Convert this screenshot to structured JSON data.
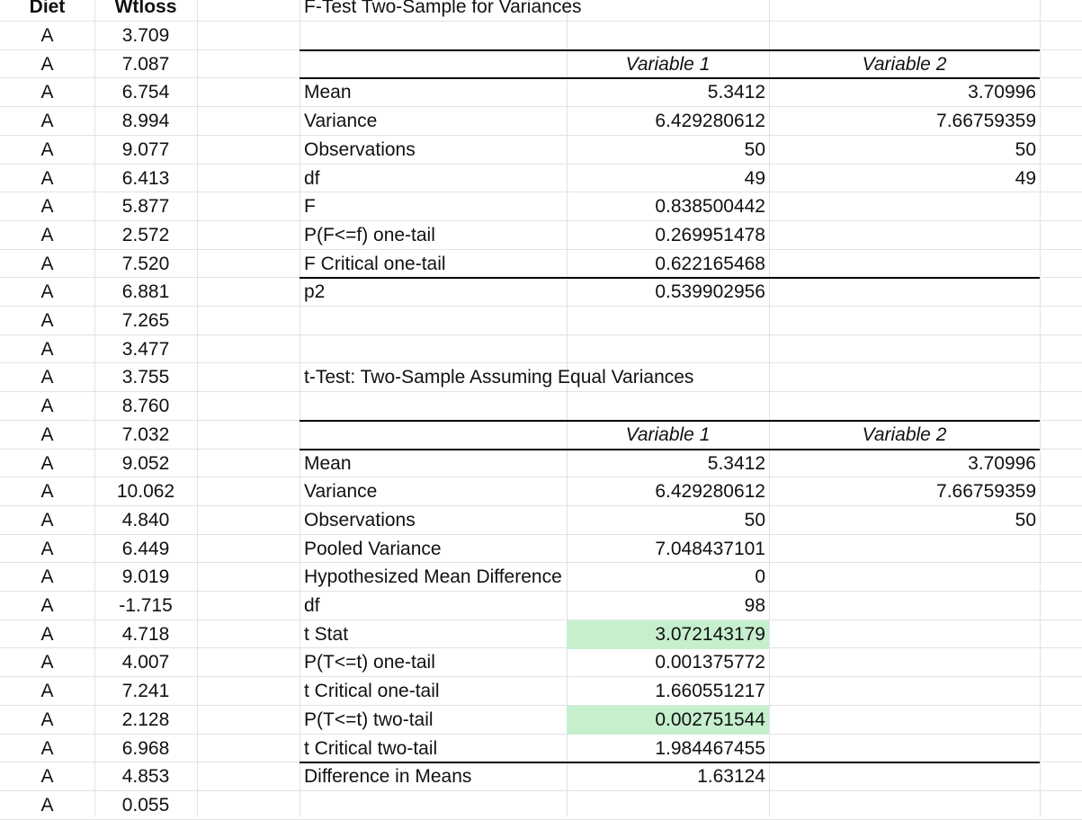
{
  "headers": {
    "diet": "Diet",
    "wtloss": "Wtloss"
  },
  "diet_rows": [
    {
      "diet": "A",
      "wtloss": "3.709"
    },
    {
      "diet": "A",
      "wtloss": "7.087"
    },
    {
      "diet": "A",
      "wtloss": "6.754"
    },
    {
      "diet": "A",
      "wtloss": "8.994"
    },
    {
      "diet": "A",
      "wtloss": "9.077"
    },
    {
      "diet": "A",
      "wtloss": "6.413"
    },
    {
      "diet": "A",
      "wtloss": "5.877"
    },
    {
      "diet": "A",
      "wtloss": "2.572"
    },
    {
      "diet": "A",
      "wtloss": "7.520"
    },
    {
      "diet": "A",
      "wtloss": "6.881"
    },
    {
      "diet": "A",
      "wtloss": "7.265"
    },
    {
      "diet": "A",
      "wtloss": "3.477"
    },
    {
      "diet": "A",
      "wtloss": "3.755"
    },
    {
      "diet": "A",
      "wtloss": "8.760"
    },
    {
      "diet": "A",
      "wtloss": "7.032"
    },
    {
      "diet": "A",
      "wtloss": "9.052"
    },
    {
      "diet": "A",
      "wtloss": "10.062"
    },
    {
      "diet": "A",
      "wtloss": "4.840"
    },
    {
      "diet": "A",
      "wtloss": "6.449"
    },
    {
      "diet": "A",
      "wtloss": "9.019"
    },
    {
      "diet": "A",
      "wtloss": "-1.715"
    },
    {
      "diet": "A",
      "wtloss": "4.718"
    },
    {
      "diet": "A",
      "wtloss": "4.007"
    },
    {
      "diet": "A",
      "wtloss": "7.241"
    },
    {
      "diet": "A",
      "wtloss": "2.128"
    },
    {
      "diet": "A",
      "wtloss": "6.968"
    },
    {
      "diet": "A",
      "wtloss": "4.853"
    },
    {
      "diet": "A",
      "wtloss": "0.055"
    }
  ],
  "ftest": {
    "title": "F-Test Two-Sample for Variances",
    "col1": "Variable 1",
    "col2": "Variable 2",
    "rows": [
      {
        "label": "Mean",
        "v1": "5.3412",
        "v2": "3.70996"
      },
      {
        "label": "Variance",
        "v1": "6.429280612",
        "v2": "7.66759359"
      },
      {
        "label": "Observations",
        "v1": "50",
        "v2": "50"
      },
      {
        "label": "df",
        "v1": "49",
        "v2": "49"
      },
      {
        "label": "F",
        "v1": "0.838500442",
        "v2": ""
      },
      {
        "label": "P(F<=f) one-tail",
        "v1": "0.269951478",
        "v2": ""
      },
      {
        "label": "F Critical one-tail",
        "v1": "0.622165468",
        "v2": ""
      }
    ],
    "extra": {
      "label": "p2",
      "v1": "0.539902956"
    }
  },
  "ttest": {
    "title": "t-Test: Two-Sample Assuming Equal Variances",
    "col1": "Variable 1",
    "col2": "Variable 2",
    "rows": [
      {
        "label": "Mean",
        "v1": "5.3412",
        "v2": "3.70996",
        "hl": false
      },
      {
        "label": "Variance",
        "v1": "6.429280612",
        "v2": "7.66759359",
        "hl": false
      },
      {
        "label": "Observations",
        "v1": "50",
        "v2": "50",
        "hl": false
      },
      {
        "label": "Pooled Variance",
        "v1": "7.048437101",
        "v2": "",
        "hl": false
      },
      {
        "label": "Hypothesized Mean Difference",
        "v1": "0",
        "v2": "",
        "hl": false
      },
      {
        "label": "df",
        "v1": "98",
        "v2": "",
        "hl": false
      },
      {
        "label": "t Stat",
        "v1": "3.072143179",
        "v2": "",
        "hl": true
      },
      {
        "label": "P(T<=t) one-tail",
        "v1": "0.001375772",
        "v2": "",
        "hl": false
      },
      {
        "label": "t Critical one-tail",
        "v1": "1.660551217",
        "v2": "",
        "hl": false
      },
      {
        "label": "P(T<=t) two-tail",
        "v1": "0.002751544",
        "v2": "",
        "hl": true
      },
      {
        "label": "t Critical two-tail",
        "v1": "1.984467455",
        "v2": "",
        "hl": false
      }
    ],
    "extra": {
      "label": "Difference in Means",
      "v1": "1.63124"
    }
  },
  "colors": {
    "highlight": "#c6efce",
    "gridline": "#e2e2e2"
  }
}
